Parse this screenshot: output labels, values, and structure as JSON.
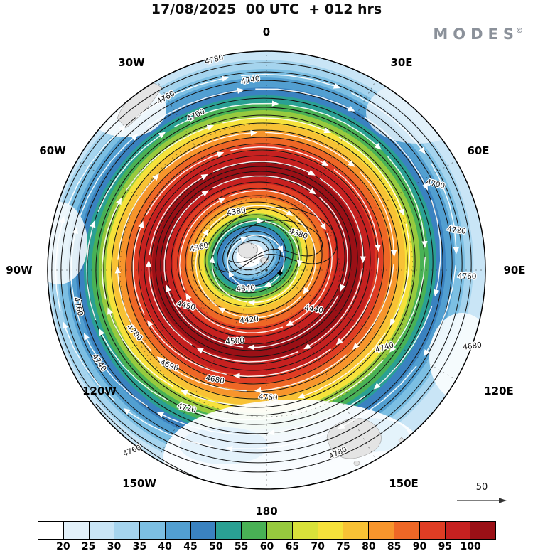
{
  "header": {
    "title": "17/08/2025  00 UTC  + 012 hrs"
  },
  "brand": {
    "name": "MODES",
    "mark": "©"
  },
  "map": {
    "compass": [
      {
        "label": "0"
      },
      {
        "label": "30E"
      },
      {
        "label": "60E"
      },
      {
        "label": "90E"
      },
      {
        "label": "120E"
      },
      {
        "label": "150E"
      },
      {
        "label": "180"
      },
      {
        "label": "150W"
      },
      {
        "label": "120W"
      },
      {
        "label": "90W"
      },
      {
        "label": "60W"
      },
      {
        "label": "30W"
      }
    ],
    "contour_labels": [
      {
        "text": "4780"
      },
      {
        "text": "4740"
      },
      {
        "text": "4700"
      },
      {
        "text": "4760"
      },
      {
        "text": "4700"
      },
      {
        "text": "4720"
      },
      {
        "text": "4760"
      },
      {
        "text": "4680"
      },
      {
        "text": "4740"
      },
      {
        "text": "4760"
      },
      {
        "text": "4720"
      },
      {
        "text": "4690"
      },
      {
        "text": "4680"
      },
      {
        "text": "4700"
      },
      {
        "text": "4760"
      },
      {
        "text": "4780"
      },
      {
        "text": "4760"
      },
      {
        "text": "4740"
      },
      {
        "text": "4380"
      },
      {
        "text": "4360"
      },
      {
        "text": "4340"
      },
      {
        "text": "4420"
      },
      {
        "text": "4440"
      },
      {
        "text": "4450"
      },
      {
        "text": "4500"
      },
      {
        "text": "4380"
      }
    ],
    "wind_ref_label": "50"
  },
  "colorbar": {
    "ticks": [
      "20",
      "25",
      "30",
      "35",
      "40",
      "45",
      "50",
      "55",
      "60",
      "65",
      "70",
      "75",
      "80",
      "85",
      "90",
      "95",
      "100"
    ],
    "colors": [
      "#ffffff",
      "#e3f1fa",
      "#c9e5f6",
      "#a5d4ee",
      "#7cbfe3",
      "#529fd1",
      "#3a82c0",
      "#2aa093",
      "#49b155",
      "#97ca3e",
      "#d8e23a",
      "#f6e23b",
      "#f8c235",
      "#f7952c",
      "#ee6726",
      "#e03d24",
      "#c62120",
      "#9b1016"
    ]
  },
  "chart_data": {
    "type": "heatmap",
    "title": "17/08/2025 00 UTC + 012 hrs",
    "description": "Polar stereographic weather chart: shaded wind speed field with white streamline arrows and black geopotential height contours (MODES)",
    "projection": "south polar stereographic, 0 deg longitude at top, east longitudes clockwise",
    "shaded_field": "wind speed",
    "colorbar": {
      "orientation": "horizontal",
      "position": "bottom",
      "ticks": [
        20,
        25,
        30,
        35,
        40,
        45,
        50,
        55,
        60,
        65,
        70,
        75,
        80,
        85,
        90,
        95,
        100
      ]
    },
    "contour_field": "geopotential height",
    "contour_levels_labeled": [
      4340,
      4360,
      4380,
      4420,
      4440,
      4450,
      4500,
      4680,
      4690,
      4700,
      4720,
      4740,
      4760,
      4780
    ],
    "contour_min_near_center": 4340,
    "contour_max_near_edge": 4780,
    "vector_overlay": {
      "style": "white streamline arrows, clockwise circumpolar vortex",
      "reference_value": 50
    },
    "meridians_labeled": [
      "0",
      "30E",
      "60E",
      "90E",
      "120E",
      "150E",
      "180",
      "150W",
      "120W",
      "90W",
      "60W",
      "30W"
    ],
    "valid": "17/08/2025 00 UTC",
    "lead_time_hours": 12
  }
}
